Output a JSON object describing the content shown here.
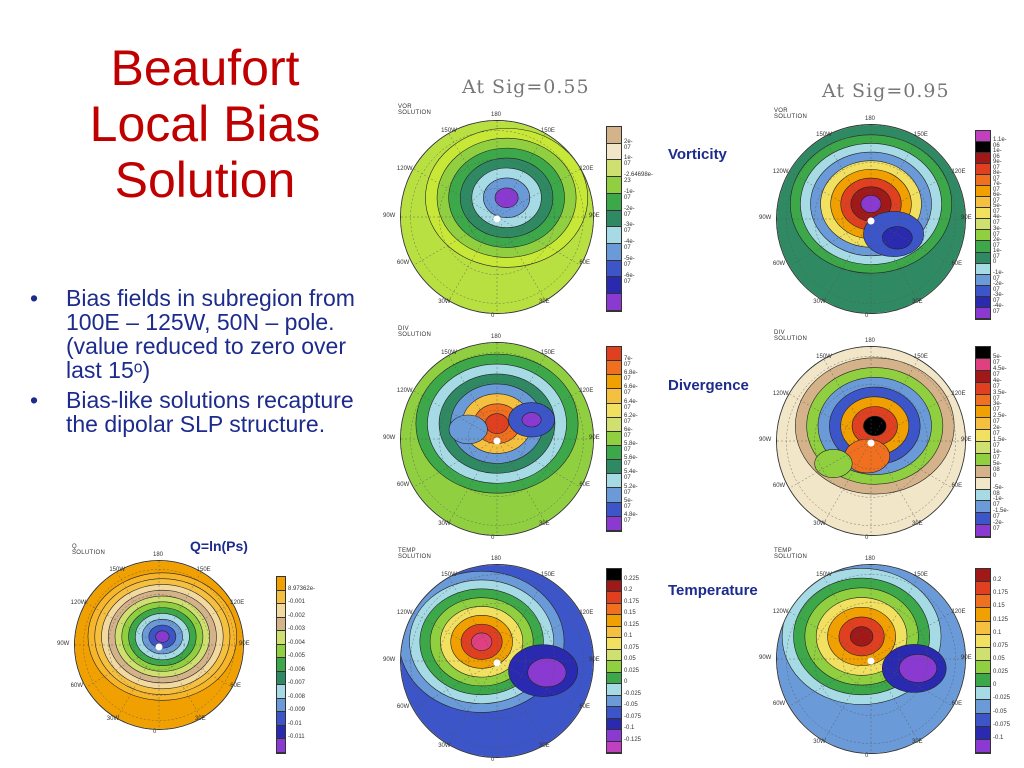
{
  "slide": {
    "title_lines": [
      "Beaufort",
      "Local Bias",
      "Solution"
    ],
    "bullet_char": "•",
    "bullets": [
      "Bias fields in subregion from 100E – 125W, 50N – pole. (value reduced to zero over last 15ᵒ)",
      "Bias-like solutions recapture the dipolar SLP structure."
    ],
    "header_left": "At Sig=0.55",
    "header_right": "At Sig=0.95",
    "q_label": "Q=ln(Ps)",
    "row_labels": {
      "vorticity": "Vorticity",
      "divergence": "Divergence",
      "temperature": "Temperature"
    }
  },
  "lon_labels": {
    "top": "180",
    "tl": "150W",
    "tr": "150E",
    "ul": "120W",
    "ur": "120E",
    "ml": "90W",
    "mr": "90E",
    "ll": "60W",
    "lr": "60E",
    "bl": "30W",
    "br": "30E",
    "bot": "0"
  },
  "panels": [
    {
      "id": "q",
      "title": "Q SOLUTION",
      "ticks": [
        "8.97362e-",
        "-0.001",
        "-0.002",
        "-0.003",
        "-0.004",
        "-0.005",
        "-0.006",
        "-0.007",
        "-0.008",
        "-0.009",
        "-0.01",
        "-0.011"
      ],
      "colors": [
        "#f0a000",
        "#f5c040",
        "#f2d9a0",
        "#d4b28a",
        "#d0e070",
        "#90d040",
        "#3ca84a",
        "#2f8a64",
        "#a6dbe6",
        "#6a9ad8",
        "#3c55c8",
        "#2a2ab0",
        "#8a3ad0"
      ],
      "rings": [
        "#f0a000",
        "#f7b52a",
        "#f5c040",
        "#f2d9a0",
        "#d4b28a",
        "#d0e070",
        "#90d040",
        "#3ca84a",
        "#a6dbe6",
        "#6a9ad8",
        "#3c55c8",
        "#8a3ad0"
      ]
    },
    {
      "id": "vor55",
      "title": "VOR SOLUTION",
      "ticks": [
        "2e-07",
        "1e-07",
        "-2.64698e-23",
        "-1e-07",
        "-2e-07",
        "-3e-07",
        "-4e-07",
        "-5e-07",
        "-6e-07"
      ],
      "colors": [
        "#d4b28a",
        "#f2e6c8",
        "#d0e070",
        "#90d040",
        "#3ca84a",
        "#2f8a64",
        "#a6dbe6",
        "#6a9ad8",
        "#3c55c8",
        "#2a2ab0",
        "#8a3ad0"
      ],
      "rings": [
        "#b8e040",
        "#c8e838",
        "#90d040",
        "#3ca84a",
        "#2f8a64",
        "#a6dbe6",
        "#6a9ad8",
        "#8a3ad0"
      ]
    },
    {
      "id": "vor95",
      "title": "VOR SOLUTION",
      "ticks": [
        "1.1e-06",
        "1e-06",
        "9e-07",
        "8e-07",
        "7e-07",
        "6e-07",
        "5e-07",
        "4e-07",
        "3e-07",
        "2e-07",
        "1e-07",
        "0",
        "-1e-07",
        "-2e-07",
        "-3e-07",
        "-4e-07"
      ],
      "colors": [
        "#c040c0",
        "#000000",
        "#a01818",
        "#e04020",
        "#f07020",
        "#f0a000",
        "#f5c040",
        "#f2e060",
        "#d0e070",
        "#90d040",
        "#3ca84a",
        "#2f8a64",
        "#a6dbe6",
        "#6a9ad8",
        "#3c55c8",
        "#2a2ab0",
        "#8a3ad0"
      ],
      "rings": [
        "#2f8a64",
        "#3ca84a",
        "#a6dbe6",
        "#6a9ad8",
        "#f2e060",
        "#f0a000",
        "#e04020",
        "#a01818",
        "#8a3ad0"
      ]
    },
    {
      "id": "div55",
      "title": "DIV SOLUTION",
      "ticks": [
        "7e-07",
        "6.8e-07",
        "6.6e-07",
        "6.4e-07",
        "6.2e-07",
        "6e-07",
        "5.8e-07",
        "5.6e-07",
        "5.4e-07",
        "5.2e-07",
        "5e-07",
        "4.8e-07"
      ],
      "colors": [
        "#e04020",
        "#f07020",
        "#f0a000",
        "#f5c040",
        "#f2e060",
        "#d0e070",
        "#90d040",
        "#3ca84a",
        "#2f8a64",
        "#a6dbe6",
        "#6a9ad8",
        "#3c55c8",
        "#8a3ad0"
      ],
      "rings": [
        "#90d040",
        "#3ca84a",
        "#a6dbe6",
        "#2f8a64",
        "#6a9ad8",
        "#f5c040",
        "#f07020",
        "#e04020"
      ]
    },
    {
      "id": "div95",
      "title": "DIV SOLUTION",
      "ticks": [
        "5e-07",
        "4.5e-07",
        "4e-07",
        "3.5e-07",
        "3e-07",
        "2.5e-07",
        "2e-07",
        "1.5e-07",
        "1e-07",
        "5e-08",
        "0",
        "-5e-08",
        "-1e-07",
        "-1.5e-07",
        "-2e-07"
      ],
      "colors": [
        "#000000",
        "#e04080",
        "#a01818",
        "#e04020",
        "#f07020",
        "#f0a000",
        "#f5c040",
        "#f2e060",
        "#d0e070",
        "#90d040",
        "#d4b28a",
        "#f2e6c8",
        "#a6dbe6",
        "#6a9ad8",
        "#3c55c8",
        "#8a3ad0"
      ],
      "rings": [
        "#f2e6c8",
        "#d4b28a",
        "#90d040",
        "#6a9ad8",
        "#3c55c8",
        "#f0a000",
        "#e04020",
        "#000000"
      ]
    },
    {
      "id": "temp55",
      "title": "TEMP SOLUTION",
      "ticks": [
        "0.225",
        "0.2",
        "0.175",
        "0.15",
        "0.125",
        "0.1",
        "0.075",
        "0.05",
        "0.025",
        "0",
        "-0.025",
        "-0.05",
        "-0.075",
        "-0.1",
        "-0.125"
      ],
      "colors": [
        "#000000",
        "#a01818",
        "#e04020",
        "#f07020",
        "#f0a000",
        "#f5c040",
        "#f2e060",
        "#d0e070",
        "#90d040",
        "#3ca84a",
        "#a6dbe6",
        "#6a9ad8",
        "#3c55c8",
        "#2a2ab0",
        "#8a3ad0",
        "#c040c0"
      ],
      "rings": [
        "#3c55c8",
        "#6a9ad8",
        "#a6dbe6",
        "#3ca84a",
        "#90d040",
        "#f2e060",
        "#f0a000",
        "#e04020",
        "#e04080"
      ]
    },
    {
      "id": "temp95",
      "title": "TEMP SOLUTION",
      "ticks": [
        "0.2",
        "0.175",
        "0.15",
        "0.125",
        "0.1",
        "0.075",
        "0.05",
        "0.025",
        "0",
        "-0.025",
        "-0.05",
        "-0.075",
        "-0.1"
      ],
      "colors": [
        "#a01818",
        "#e04020",
        "#f07020",
        "#f0a000",
        "#f5c040",
        "#f2e060",
        "#d0e070",
        "#90d040",
        "#3ca84a",
        "#a6dbe6",
        "#6a9ad8",
        "#3c55c8",
        "#2a2ab0",
        "#8a3ad0"
      ],
      "rings": [
        "#6a9ad8",
        "#a6dbe6",
        "#3ca84a",
        "#90d040",
        "#f2e060",
        "#f0a000",
        "#e04020",
        "#a01818"
      ]
    }
  ]
}
